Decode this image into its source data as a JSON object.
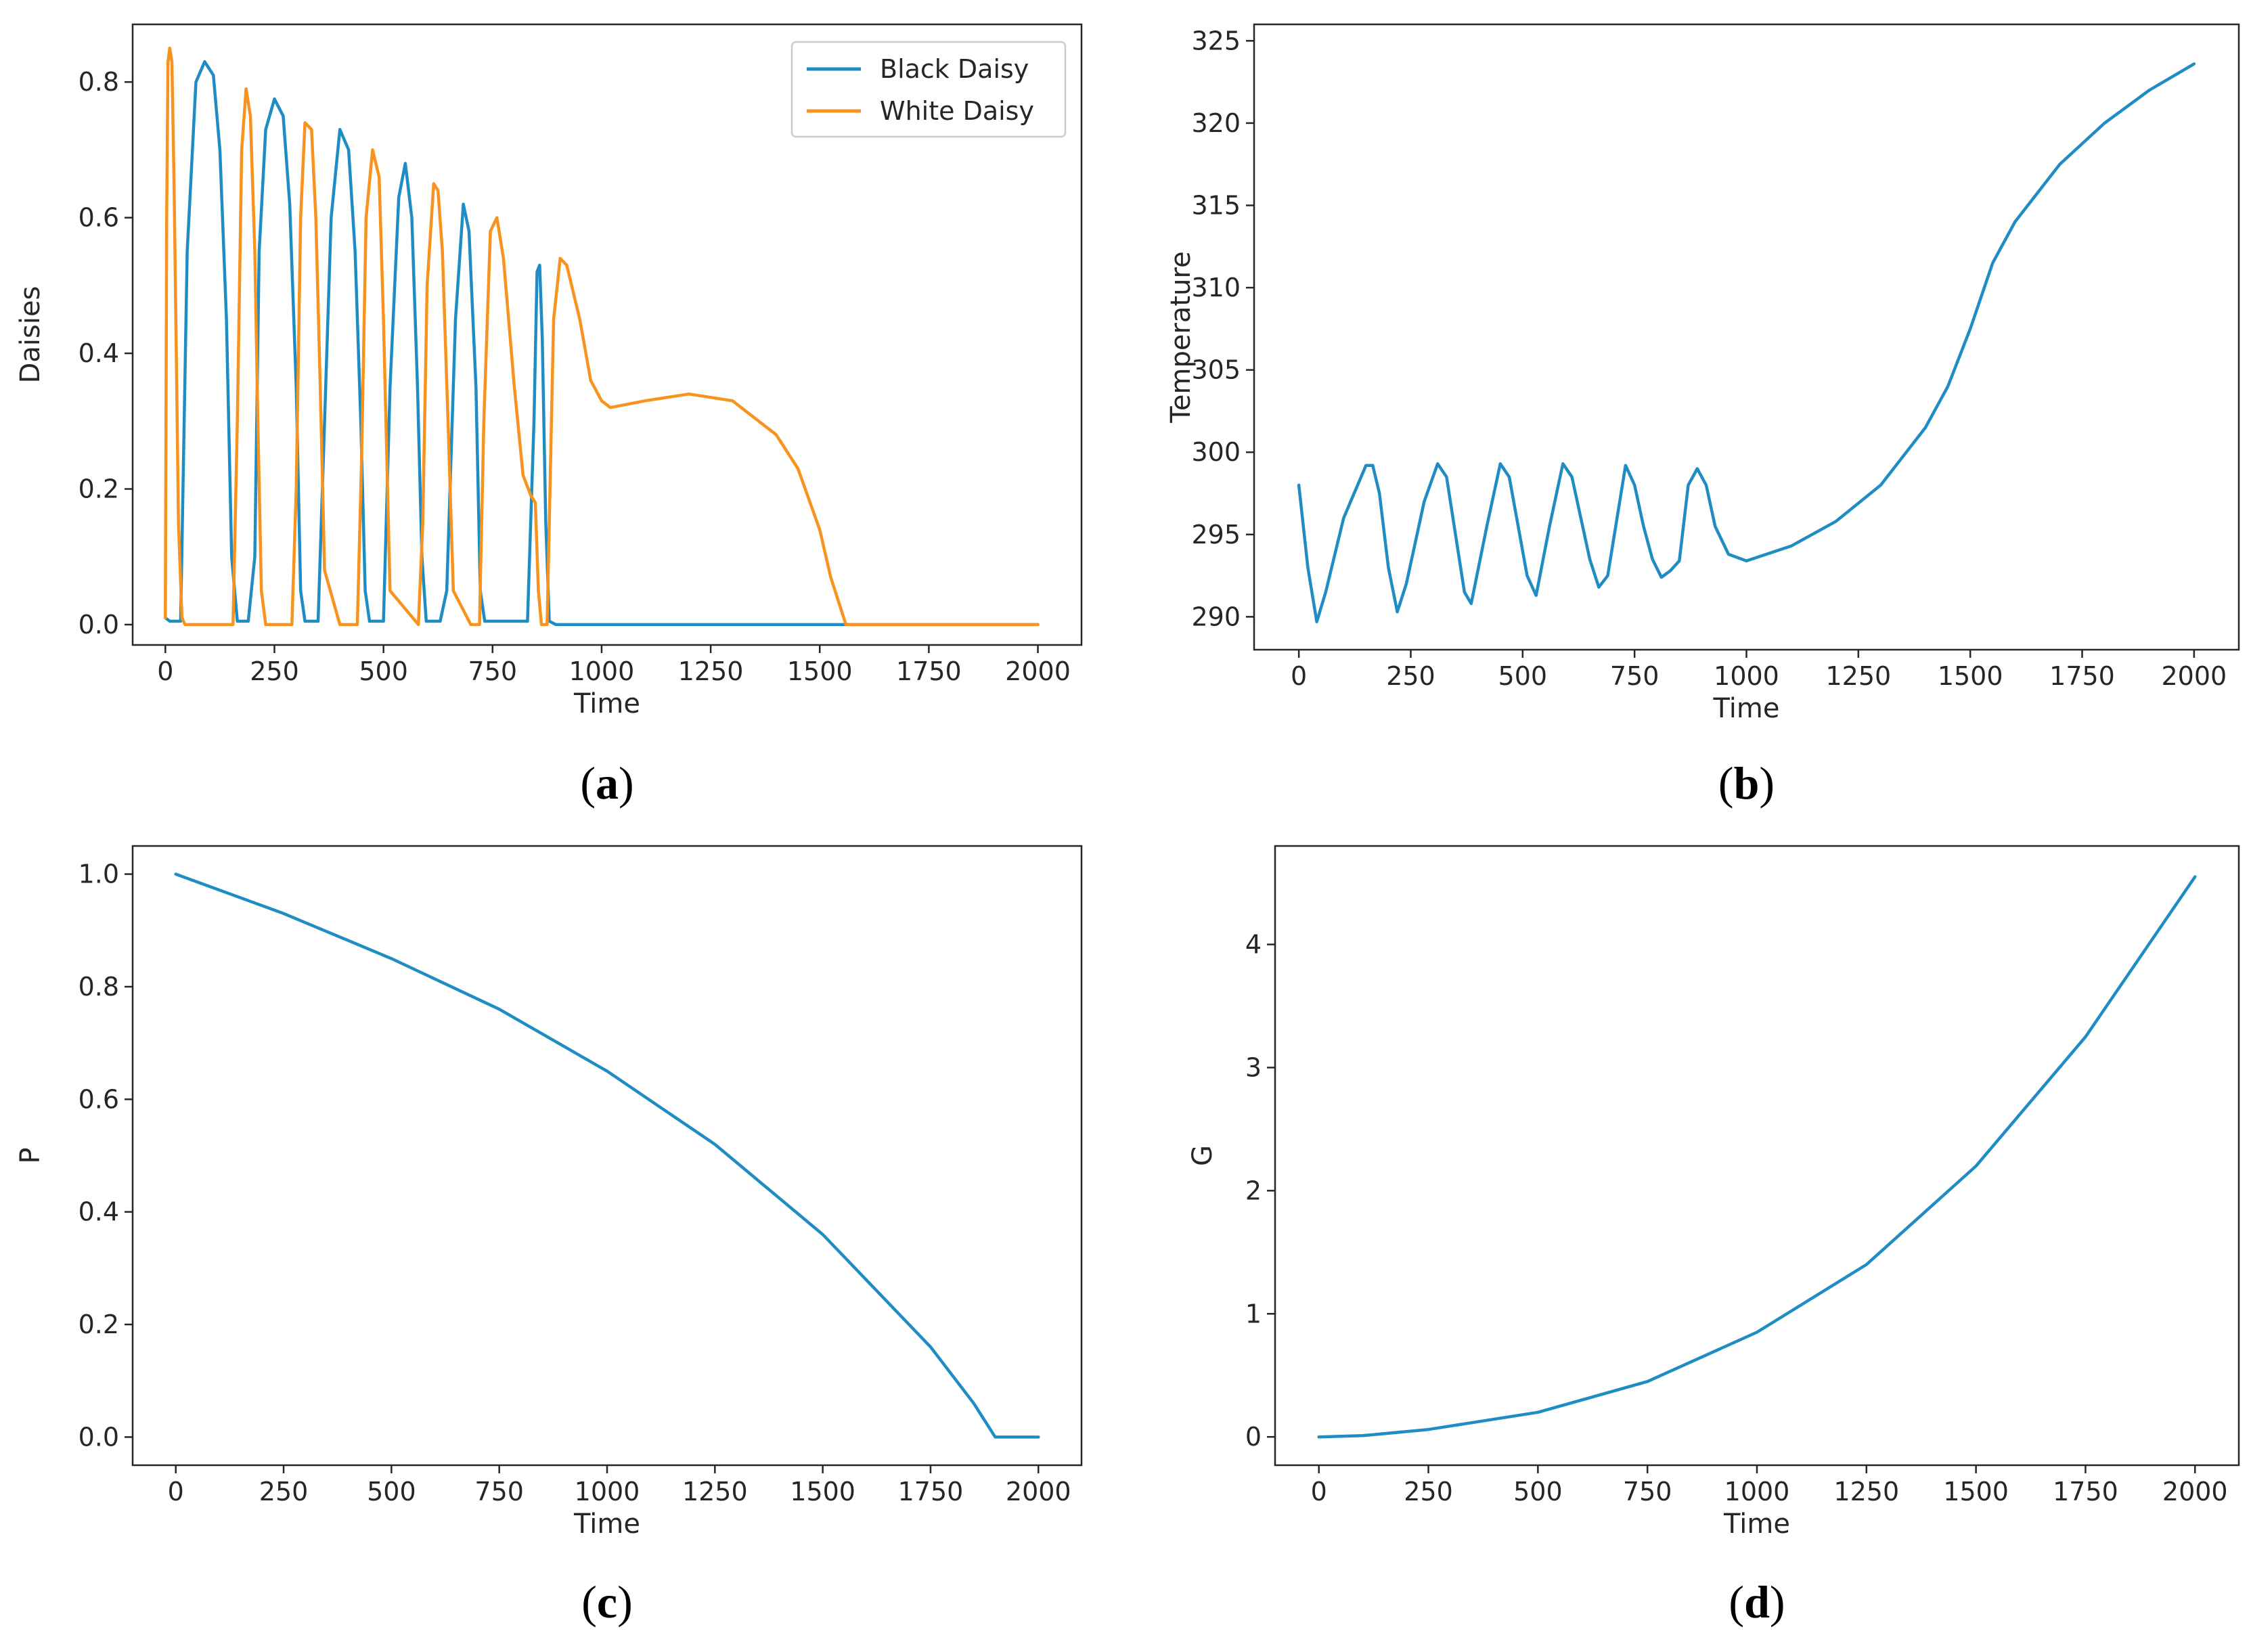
{
  "colors": {
    "black_daisy": "#1f8dc4",
    "white_daisy": "#f7931e",
    "axis": "#262626"
  },
  "chart_data": [
    {
      "id": "a",
      "type": "line",
      "panel_label": "a",
      "xlabel": "Time",
      "ylabel": "Daisies",
      "xlim": [
        -75,
        2100
      ],
      "ylim": [
        -0.03,
        0.885
      ],
      "xticks": [
        0,
        250,
        500,
        750,
        1000,
        1250,
        1500,
        1750,
        2000
      ],
      "yticks": [
        0.0,
        0.2,
        0.4,
        0.6,
        0.8
      ],
      "ytick_labels": [
        "0.0",
        "0.2",
        "0.4",
        "0.6",
        "0.8"
      ],
      "legend": {
        "position": "top-right",
        "entries": [
          "Black Daisy",
          "White Daisy"
        ]
      },
      "series": [
        {
          "name": "Black Daisy",
          "color": "#1f8dc4",
          "x": [
            0,
            10,
            20,
            35,
            50,
            70,
            90,
            110,
            125,
            140,
            152,
            165,
            175,
            190,
            205,
            215,
            230,
            250,
            270,
            285,
            300,
            310,
            320,
            335,
            350,
            365,
            380,
            400,
            420,
            435,
            448,
            458,
            468,
            485,
            500,
            515,
            535,
            550,
            565,
            578,
            588,
            598,
            615,
            630,
            645,
            665,
            683,
            696,
            712,
            722,
            732,
            745,
            760,
            790,
            830,
            845,
            852,
            858,
            864,
            872,
            880,
            895,
            1000,
            1500,
            2000
          ],
          "y": [
            0.01,
            0.005,
            0.005,
            0.005,
            0.55,
            0.8,
            0.83,
            0.81,
            0.7,
            0.45,
            0.1,
            0.005,
            0.005,
            0.005,
            0.1,
            0.55,
            0.73,
            0.775,
            0.75,
            0.62,
            0.35,
            0.05,
            0.005,
            0.005,
            0.005,
            0.3,
            0.6,
            0.73,
            0.7,
            0.55,
            0.3,
            0.05,
            0.005,
            0.005,
            0.005,
            0.35,
            0.63,
            0.68,
            0.6,
            0.35,
            0.1,
            0.005,
            0.005,
            0.005,
            0.05,
            0.45,
            0.62,
            0.58,
            0.35,
            0.05,
            0.005,
            0.005,
            0.005,
            0.005,
            0.005,
            0.3,
            0.52,
            0.53,
            0.42,
            0.15,
            0.005,
            0.0,
            0.0,
            0.0,
            0.0
          ]
        },
        {
          "name": "White Daisy",
          "color": "#f7931e",
          "x": [
            0,
            3,
            6,
            10,
            15,
            20,
            25,
            30,
            38,
            45,
            55,
            100,
            155,
            165,
            175,
            185,
            195,
            205,
            212,
            220,
            230,
            290,
            300,
            310,
            320,
            335,
            345,
            355,
            365,
            400,
            440,
            450,
            460,
            475,
            490,
            500,
            515,
            580,
            590,
            600,
            615,
            625,
            635,
            648,
            660,
            700,
            720,
            730,
            745,
            760,
            775,
            800,
            820,
            838,
            848,
            855,
            862,
            875,
            890,
            905,
            920,
            950,
            975,
            1000,
            1020,
            1100,
            1200,
            1300,
            1400,
            1450,
            1500,
            1525,
            1550,
            1560,
            2000
          ],
          "y": [
            0.01,
            0.6,
            0.83,
            0.85,
            0.83,
            0.65,
            0.4,
            0.15,
            0.01,
            0.0,
            0.0,
            0.0,
            0.0,
            0.3,
            0.7,
            0.79,
            0.75,
            0.55,
            0.3,
            0.05,
            0.0,
            0.0,
            0.2,
            0.6,
            0.74,
            0.73,
            0.6,
            0.35,
            0.08,
            0.0,
            0.0,
            0.25,
            0.6,
            0.7,
            0.66,
            0.45,
            0.05,
            0.0,
            0.15,
            0.5,
            0.65,
            0.64,
            0.55,
            0.3,
            0.05,
            0.0,
            0.0,
            0.3,
            0.58,
            0.6,
            0.54,
            0.35,
            0.22,
            0.19,
            0.18,
            0.05,
            0.0,
            0.0,
            0.45,
            0.54,
            0.53,
            0.45,
            0.36,
            0.33,
            0.32,
            0.33,
            0.34,
            0.33,
            0.28,
            0.23,
            0.14,
            0.07,
            0.02,
            0.0,
            0.0
          ]
        }
      ]
    },
    {
      "id": "b",
      "type": "line",
      "panel_label": "b",
      "xlabel": "Time",
      "ylabel": "Temperature",
      "xlim": [
        -100,
        2100
      ],
      "ylim": [
        288,
        326
      ],
      "xticks": [
        0,
        250,
        500,
        750,
        1000,
        1250,
        1500,
        1750,
        2000
      ],
      "yticks": [
        290,
        295,
        300,
        305,
        310,
        315,
        320,
        325
      ],
      "ytick_labels": [
        "290",
        "295",
        "300",
        "305",
        "310",
        "315",
        "320",
        "325"
      ],
      "series": [
        {
          "color": "#1f8dc4",
          "x": [
            0,
            20,
            40,
            60,
            100,
            150,
            165,
            180,
            200,
            220,
            240,
            280,
            310,
            330,
            350,
            370,
            385,
            420,
            450,
            470,
            490,
            510,
            530,
            560,
            590,
            610,
            630,
            650,
            670,
            690,
            730,
            750,
            770,
            790,
            810,
            830,
            850,
            870,
            890,
            910,
            930,
            960,
            1000,
            1100,
            1200,
            1300,
            1400,
            1450,
            1500,
            1550,
            1600,
            1700,
            1800,
            1900,
            2000
          ],
          "y": [
            298,
            293,
            289.7,
            291.5,
            296,
            299.2,
            299.2,
            297.5,
            293,
            290.3,
            292,
            297,
            299.3,
            298.5,
            295,
            291.5,
            290.8,
            295.5,
            299.3,
            298.5,
            295.5,
            292.5,
            291.3,
            295.5,
            299.3,
            298.5,
            296,
            293.5,
            291.8,
            292.5,
            299.2,
            298,
            295.5,
            293.5,
            292.4,
            292.8,
            293.4,
            298,
            299,
            298,
            295.5,
            293.8,
            293.4,
            294.3,
            295.8,
            298,
            301.5,
            304,
            307.5,
            311.5,
            314,
            317.5,
            320,
            322,
            323.6
          ]
        }
      ]
    },
    {
      "id": "c",
      "type": "line",
      "panel_label": "c",
      "xlabel": "Time",
      "ylabel": "P",
      "xlim": [
        -100,
        2100
      ],
      "ylim": [
        -0.05,
        1.05
      ],
      "xticks": [
        0,
        250,
        500,
        750,
        1000,
        1250,
        1500,
        1750,
        2000
      ],
      "yticks": [
        0.0,
        0.2,
        0.4,
        0.6,
        0.8,
        1.0
      ],
      "ytick_labels": [
        "0.0",
        "0.2",
        "0.4",
        "0.6",
        "0.8",
        "1.0"
      ],
      "series": [
        {
          "color": "#1f8dc4",
          "x": [
            0,
            250,
            500,
            750,
            1000,
            1250,
            1500,
            1750,
            1850,
            1900,
            2000
          ],
          "y": [
            1.0,
            0.93,
            0.85,
            0.76,
            0.65,
            0.52,
            0.36,
            0.16,
            0.06,
            0.0,
            0.0
          ]
        }
      ]
    },
    {
      "id": "d",
      "type": "line",
      "panel_label": "d",
      "xlabel": "Time",
      "ylabel": "G",
      "xlim": [
        -100,
        2100
      ],
      "ylim": [
        -0.23,
        4.8
      ],
      "xticks": [
        0,
        250,
        500,
        750,
        1000,
        1250,
        1500,
        1750,
        2000
      ],
      "yticks": [
        0,
        1,
        2,
        3,
        4
      ],
      "ytick_labels": [
        "0",
        "1",
        "2",
        "3",
        "4"
      ],
      "series": [
        {
          "color": "#1f8dc4",
          "x": [
            0,
            100,
            250,
            500,
            750,
            1000,
            1250,
            1500,
            1750,
            2000
          ],
          "y": [
            0.0,
            0.01,
            0.06,
            0.2,
            0.45,
            0.85,
            1.4,
            2.2,
            3.25,
            4.55
          ]
        }
      ]
    }
  ]
}
